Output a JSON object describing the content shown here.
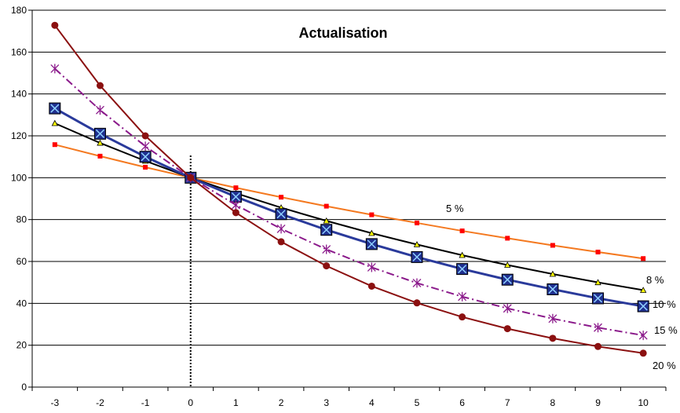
{
  "chart_data": {
    "type": "line",
    "title": "Actualisation",
    "xlabel": "",
    "ylabel": "",
    "x": [
      -3,
      -2,
      -1,
      0,
      1,
      2,
      3,
      4,
      5,
      6,
      7,
      8,
      9,
      10
    ],
    "xlim": [
      -3.5,
      10.5
    ],
    "ylim": [
      0,
      180
    ],
    "yticks": [
      0,
      20,
      40,
      60,
      80,
      100,
      120,
      140,
      160,
      180
    ],
    "grid": "horizontal",
    "divider_at_x": 0,
    "series": [
      {
        "name": "5 %",
        "color": "#f47920",
        "marker": "square",
        "marker_color": "#ff0000",
        "values": [
          115.8,
          110.3,
          105.0,
          100,
          95.2,
          90.7,
          86.4,
          82.3,
          78.4,
          74.6,
          71.1,
          67.7,
          64.5,
          61.4
        ]
      },
      {
        "name": "8 %",
        "color": "#000000",
        "marker": "triangle",
        "marker_color": "#ffff00",
        "values": [
          126.0,
          116.6,
          108.0,
          100,
          92.6,
          85.7,
          79.4,
          73.5,
          68.1,
          63.0,
          58.3,
          54.0,
          50.0,
          46.3
        ]
      },
      {
        "name": "10 %",
        "color": "#2a3a9b",
        "marker": "boxed-x",
        "marker_color": "#1f2f8f",
        "values": [
          133.1,
          121.0,
          110.0,
          100,
          90.9,
          82.6,
          75.1,
          68.3,
          62.1,
          56.4,
          51.3,
          46.7,
          42.4,
          38.6
        ]
      },
      {
        "name": "15 %",
        "color": "#8b1a8b",
        "marker": "star",
        "marker_color": "#8b1a8b",
        "dash": true,
        "values": [
          152.1,
          132.3,
          115.0,
          100,
          87.0,
          75.6,
          65.8,
          57.2,
          49.7,
          43.2,
          37.6,
          32.7,
          28.4,
          24.7
        ]
      },
      {
        "name": "20 %",
        "color": "#8b1010",
        "marker": "circle",
        "marker_color": "#8b1010",
        "values": [
          172.8,
          144.0,
          120.0,
          100,
          83.3,
          69.4,
          57.9,
          48.2,
          40.2,
          33.5,
          27.9,
          23.3,
          19.4,
          16.2
        ]
      }
    ]
  }
}
